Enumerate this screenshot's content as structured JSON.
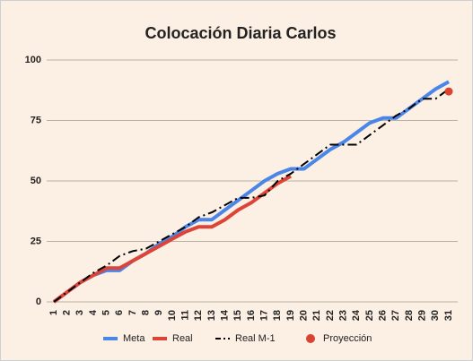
{
  "chart_data": {
    "type": "line",
    "title": "Colocación Diaria Carlos",
    "categories": [
      "1",
      "2",
      "3",
      "4",
      "5",
      "6",
      "7",
      "8",
      "9",
      "10",
      "11",
      "12",
      "13",
      "14",
      "15",
      "16",
      "17",
      "18",
      "19",
      "20",
      "21",
      "22",
      "23",
      "24",
      "25",
      "26",
      "27",
      "28",
      "29",
      "30",
      "31"
    ],
    "series": [
      {
        "name": "Meta",
        "color": "#4a86e8",
        "line_style": "solid",
        "values": [
          0,
          4,
          8,
          11,
          13,
          13,
          17,
          20,
          24,
          27,
          31,
          34,
          34,
          38,
          42,
          46,
          50,
          53,
          55,
          55,
          59,
          63,
          66,
          70,
          74,
          76,
          76,
          80,
          84,
          88,
          91
        ]
      },
      {
        "name": "Real",
        "color": "#db4437",
        "line_style": "solid",
        "values": [
          0,
          4,
          8,
          11,
          14,
          14,
          17,
          20,
          23,
          26,
          29,
          31,
          31,
          34,
          38,
          41,
          45,
          49,
          52,
          null,
          null,
          null,
          null,
          null,
          null,
          null,
          null,
          null,
          null,
          null,
          null
        ]
      },
      {
        "name": "Real M-1",
        "color": "#000000",
        "line_style": "dashdot",
        "values": [
          0,
          4,
          8,
          12,
          15,
          19,
          21,
          22,
          25,
          28,
          31,
          35,
          37,
          40,
          43,
          43,
          44,
          50,
          53,
          57,
          61,
          65,
          65,
          65,
          69,
          73,
          77,
          80,
          84,
          84,
          88
        ]
      },
      {
        "name": "Proyección",
        "color": "#d9432f",
        "line_style": "marker",
        "values": [
          null,
          null,
          null,
          null,
          null,
          null,
          null,
          null,
          null,
          null,
          null,
          null,
          null,
          null,
          null,
          null,
          null,
          null,
          null,
          null,
          null,
          null,
          null,
          null,
          null,
          null,
          null,
          null,
          null,
          null,
          87
        ]
      }
    ],
    "ylim": [
      0,
      100
    ],
    "yticks": [
      0,
      25,
      50,
      75,
      100
    ],
    "grid": true,
    "legend": "bottom"
  }
}
